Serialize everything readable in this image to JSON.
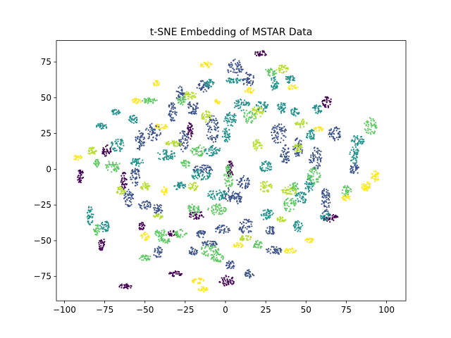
{
  "chart_data": {
    "type": "scatter",
    "title": "t-SNE Embedding of MSTAR Data",
    "xlabel": "",
    "ylabel": "",
    "xlim": [
      -105,
      112
    ],
    "ylim": [
      -92,
      90
    ],
    "xticks": [
      -100,
      -75,
      -50,
      -25,
      0,
      25,
      50,
      75,
      100
    ],
    "yticks": [
      -75,
      -50,
      -25,
      0,
      25,
      50,
      75
    ],
    "grid": false,
    "legend": "none",
    "palette": [
      "#440154",
      "#3b528b",
      "#21918c",
      "#5ec962",
      "#b5de2b",
      "#fde725"
    ],
    "series": [
      {
        "color": "#440154",
        "clusters": [
          [
            22,
            81,
            4,
            2
          ],
          [
            63,
            47,
            3,
            4
          ],
          [
            -90,
            -5,
            2,
            5
          ],
          [
            -63,
            -8,
            2,
            6
          ],
          [
            -77,
            -52,
            2,
            5
          ],
          [
            -62,
            -82,
            4,
            2
          ],
          [
            -18,
            -32,
            5,
            3
          ],
          [
            3,
            0,
            2,
            6
          ],
          [
            -31,
            -73,
            4,
            2
          ],
          [
            1,
            -78,
            5,
            4
          ],
          [
            65,
            -34,
            5,
            3
          ],
          [
            -22,
            27,
            2,
            6
          ],
          [
            -74,
            13,
            3,
            4
          ],
          [
            -33,
            -45,
            3,
            2
          ],
          [
            -52,
            -40,
            2,
            3
          ]
        ]
      },
      {
        "color": "#3b528b",
        "clusters": [
          [
            6,
            71,
            5,
            6
          ],
          [
            14,
            63,
            4,
            5
          ],
          [
            -14,
            58,
            4,
            4
          ],
          [
            -20,
            43,
            4,
            5
          ],
          [
            -33,
            40,
            3,
            7
          ],
          [
            -45,
            26,
            5,
            6
          ],
          [
            -53,
            20,
            3,
            7
          ],
          [
            -26,
            20,
            3,
            8
          ],
          [
            -8,
            28,
            4,
            10
          ],
          [
            -56,
            -5,
            3,
            7
          ],
          [
            -60,
            -20,
            3,
            6
          ],
          [
            -50,
            -25,
            4,
            3
          ],
          [
            -42,
            -28,
            3,
            4
          ],
          [
            -14,
            0,
            6,
            3
          ],
          [
            2,
            -18,
            4,
            5
          ],
          [
            11,
            -9,
            4,
            5
          ],
          [
            -2,
            -42,
            5,
            3
          ],
          [
            -10,
            -52,
            5,
            2
          ],
          [
            13,
            -40,
            5,
            5
          ],
          [
            -15,
            -45,
            3,
            3
          ],
          [
            3,
            -67,
            3,
            3
          ],
          [
            15,
            -73,
            3,
            3
          ],
          [
            30,
            -57,
            5,
            3
          ],
          [
            28,
            -43,
            3,
            3
          ],
          [
            33,
            25,
            5,
            7
          ],
          [
            45,
            15,
            3,
            7
          ],
          [
            56,
            8,
            4,
            8
          ],
          [
            37,
            10,
            3,
            7
          ],
          [
            68,
            25,
            4,
            5
          ],
          [
            62,
            -22,
            3,
            9
          ],
          [
            80,
            0,
            3,
            4
          ],
          [
            -28,
            53,
            3,
            5
          ],
          [
            -20,
            -57,
            3,
            3
          ],
          [
            -42,
            -58,
            3,
            4
          ],
          [
            8,
            -20,
            3,
            4
          ]
        ]
      },
      {
        "color": "#21918c",
        "clusters": [
          [
            30,
            60,
            3,
            5
          ],
          [
            40,
            63,
            3,
            3
          ],
          [
            35,
            43,
            3,
            4
          ],
          [
            -10,
            60,
            3,
            3
          ],
          [
            -77,
            30,
            4,
            2
          ],
          [
            -68,
            40,
            3,
            2
          ],
          [
            -57,
            35,
            3,
            3
          ],
          [
            -37,
            10,
            6,
            4
          ],
          [
            -67,
            17,
            4,
            5
          ],
          [
            -55,
            5,
            4,
            3
          ],
          [
            -15,
            -4,
            6,
            4
          ],
          [
            -5,
            -18,
            6,
            4
          ],
          [
            -8,
            13,
            5,
            4
          ],
          [
            -84,
            -32,
            2,
            7
          ],
          [
            -75,
            -40,
            3,
            4
          ],
          [
            1,
            24,
            3,
            5
          ],
          [
            3,
            35,
            4,
            5
          ],
          [
            10,
            45,
            5,
            4
          ],
          [
            23,
            44,
            4,
            4
          ],
          [
            53,
            24,
            3,
            4
          ],
          [
            57,
            42,
            3,
            3
          ],
          [
            43,
            40,
            3,
            3
          ],
          [
            82,
            20,
            4,
            4
          ],
          [
            80,
            10,
            3,
            6
          ],
          [
            52,
            -10,
            3,
            6
          ],
          [
            47,
            -20,
            4,
            4
          ],
          [
            62,
            -33,
            3,
            3
          ],
          [
            26,
            -32,
            4,
            4
          ],
          [
            45,
            -40,
            3,
            4
          ],
          [
            25,
            2,
            4,
            4
          ],
          [
            5,
            62,
            5,
            2
          ],
          [
            -28,
            -12,
            4,
            3
          ]
        ]
      },
      {
        "color": "#5ec962",
        "clusters": [
          [
            28,
            68,
            4,
            3
          ],
          [
            15,
            37,
            4,
            5
          ],
          [
            -27,
            48,
            3,
            3
          ],
          [
            -47,
            48,
            5,
            2
          ],
          [
            -17,
            13,
            5,
            4
          ],
          [
            -25,
            4,
            3,
            3
          ],
          [
            -70,
            2,
            5,
            4
          ],
          [
            -80,
            4,
            2,
            3
          ],
          [
            -80,
            -42,
            2,
            4
          ],
          [
            -50,
            -62,
            4,
            2
          ],
          [
            -40,
            -45,
            4,
            3
          ],
          [
            -28,
            -45,
            4,
            3
          ],
          [
            -10,
            -57,
            6,
            4
          ],
          [
            -5,
            -62,
            4,
            3
          ],
          [
            2,
            -5,
            3,
            8
          ],
          [
            -5,
            -28,
            6,
            4
          ],
          [
            -20,
            -28,
            4,
            4
          ],
          [
            40,
            -25,
            4,
            5
          ],
          [
            55,
            -5,
            4,
            6
          ],
          [
            43,
            -12,
            3,
            3
          ],
          [
            90,
            30,
            4,
            6
          ],
          [
            75,
            -15,
            3,
            4
          ],
          [
            20,
            -53,
            3,
            3
          ],
          [
            -38,
            -50,
            4,
            2
          ]
        ]
      },
      {
        "color": "#b5de2b",
        "clusters": [
          [
            35,
            70,
            4,
            3
          ],
          [
            20,
            40,
            4,
            4
          ],
          [
            20,
            17,
            3,
            4
          ],
          [
            -22,
            52,
            4,
            3
          ],
          [
            -12,
            37,
            3,
            4
          ],
          [
            -32,
            18,
            5,
            2
          ],
          [
            -65,
            -15,
            3,
            3
          ],
          [
            25,
            -12,
            4,
            4
          ],
          [
            40,
            -15,
            5,
            3
          ],
          [
            45,
            15,
            3,
            3
          ],
          [
            47,
            32,
            4,
            3
          ],
          [
            -20,
            -12,
            3,
            3
          ],
          [
            12,
            -48,
            4,
            2
          ],
          [
            35,
            -35,
            3,
            2
          ],
          [
            -50,
            -12,
            3,
            3
          ],
          [
            -42,
            -33,
            3,
            2
          ],
          [
            -83,
            13,
            3,
            3
          ]
        ]
      },
      {
        "color": "#fde725",
        "clusters": [
          [
            -92,
            8,
            3,
            2
          ],
          [
            -38,
            -15,
            2,
            3
          ],
          [
            -17,
            -78,
            4,
            2
          ],
          [
            -14,
            -84,
            3,
            2
          ],
          [
            -50,
            -47,
            3,
            3
          ],
          [
            40,
            -57,
            4,
            2
          ],
          [
            52,
            -50,
            3,
            2
          ],
          [
            58,
            28,
            3,
            2
          ],
          [
            93,
            -5,
            3,
            4
          ],
          [
            88,
            -12,
            4,
            3
          ],
          [
            75,
            -20,
            3,
            2
          ],
          [
            -12,
            73,
            4,
            2
          ],
          [
            -40,
            30,
            4,
            2
          ],
          [
            42,
            57,
            3,
            2
          ],
          [
            8,
            -53,
            3,
            2
          ],
          [
            -5,
            47,
            2,
            2
          ],
          [
            15,
            55,
            3,
            2
          ],
          [
            -55,
            48,
            3,
            2
          ],
          [
            -43,
            60,
            2,
            2
          ]
        ]
      }
    ]
  }
}
